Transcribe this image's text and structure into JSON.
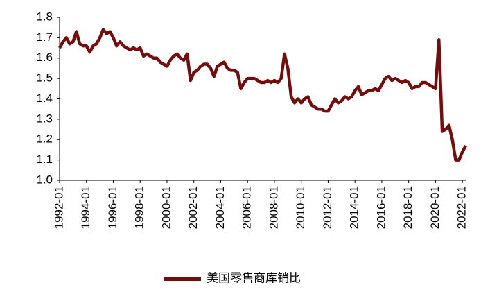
{
  "chart_data": {
    "type": "line",
    "x": [
      "1992-01",
      "1992-04",
      "1992-07",
      "1992-10",
      "1993-01",
      "1993-04",
      "1993-07",
      "1993-10",
      "1994-01",
      "1994-04",
      "1994-07",
      "1994-10",
      "1995-01",
      "1995-04",
      "1995-07",
      "1995-10",
      "1996-01",
      "1996-04",
      "1996-07",
      "1996-10",
      "1997-01",
      "1997-04",
      "1997-07",
      "1997-10",
      "1998-01",
      "1998-04",
      "1998-07",
      "1998-10",
      "1999-01",
      "1999-04",
      "1999-07",
      "1999-10",
      "2000-01",
      "2000-04",
      "2000-07",
      "2000-10",
      "2001-01",
      "2001-04",
      "2001-07",
      "2001-10",
      "2002-01",
      "2002-04",
      "2002-07",
      "2002-10",
      "2003-01",
      "2003-04",
      "2003-07",
      "2003-10",
      "2004-01",
      "2004-04",
      "2004-07",
      "2004-10",
      "2005-01",
      "2005-04",
      "2005-07",
      "2005-10",
      "2006-01",
      "2006-04",
      "2006-07",
      "2006-10",
      "2007-01",
      "2007-04",
      "2007-07",
      "2007-10",
      "2008-01",
      "2008-04",
      "2008-07",
      "2008-10",
      "2009-01",
      "2009-04",
      "2009-07",
      "2009-10",
      "2010-01",
      "2010-04",
      "2010-07",
      "2010-10",
      "2011-01",
      "2011-04",
      "2011-07",
      "2011-10",
      "2012-01",
      "2012-04",
      "2012-07",
      "2012-10",
      "2013-01",
      "2013-04",
      "2013-07",
      "2013-10",
      "2014-01",
      "2014-04",
      "2014-07",
      "2014-10",
      "2015-01",
      "2015-04",
      "2015-07",
      "2015-10",
      "2016-01",
      "2016-04",
      "2016-07",
      "2016-10",
      "2017-01",
      "2017-04",
      "2017-07",
      "2017-10",
      "2018-01",
      "2018-04",
      "2018-07",
      "2018-10",
      "2019-01",
      "2019-04",
      "2019-07",
      "2019-10",
      "2020-01",
      "2020-04",
      "2020-07",
      "2020-10",
      "2021-01",
      "2021-04",
      "2021-07",
      "2021-10",
      "2022-01",
      "2022-04"
    ],
    "series": [
      {
        "name": "美国零售商库销比",
        "color": "#760d0d",
        "values": [
          1.65,
          1.68,
          1.7,
          1.67,
          1.68,
          1.73,
          1.67,
          1.66,
          1.66,
          1.63,
          1.66,
          1.67,
          1.7,
          1.74,
          1.72,
          1.73,
          1.7,
          1.66,
          1.68,
          1.66,
          1.65,
          1.64,
          1.65,
          1.64,
          1.65,
          1.61,
          1.62,
          1.61,
          1.6,
          1.6,
          1.58,
          1.57,
          1.56,
          1.59,
          1.61,
          1.62,
          1.6,
          1.59,
          1.62,
          1.49,
          1.53,
          1.54,
          1.56,
          1.57,
          1.57,
          1.55,
          1.51,
          1.56,
          1.57,
          1.58,
          1.55,
          1.54,
          1.54,
          1.53,
          1.45,
          1.48,
          1.5,
          1.5,
          1.5,
          1.49,
          1.48,
          1.48,
          1.49,
          1.48,
          1.49,
          1.48,
          1.5,
          1.62,
          1.55,
          1.41,
          1.38,
          1.4,
          1.38,
          1.4,
          1.41,
          1.37,
          1.36,
          1.35,
          1.35,
          1.34,
          1.34,
          1.37,
          1.4,
          1.38,
          1.39,
          1.41,
          1.4,
          1.41,
          1.44,
          1.46,
          1.42,
          1.43,
          1.44,
          1.44,
          1.45,
          1.44,
          1.47,
          1.5,
          1.51,
          1.49,
          1.5,
          1.49,
          1.48,
          1.49,
          1.48,
          1.45,
          1.46,
          1.46,
          1.48,
          1.48,
          1.47,
          1.46,
          1.45,
          1.69,
          1.24,
          1.25,
          1.27,
          1.2,
          1.1,
          1.1,
          1.14,
          1.17
        ]
      }
    ],
    "xlim": [
      "1992-01",
      "2022-04"
    ],
    "xticks": [
      "1992-01",
      "1994-01",
      "1996-01",
      "1998-01",
      "2000-01",
      "2002-01",
      "2004-01",
      "2006-01",
      "2008-01",
      "2010-01",
      "2012-01",
      "2014-01",
      "2016-01",
      "2018-01",
      "2020-01",
      "2022-01"
    ],
    "ylim": [
      1,
      1.8
    ],
    "yticks": [
      {
        "value": 1,
        "label": "1.0"
      },
      1.1,
      1.2,
      1.3,
      1.4,
      1.5,
      1.6,
      1.7,
      1.8
    ],
    "legend": "bottom"
  }
}
